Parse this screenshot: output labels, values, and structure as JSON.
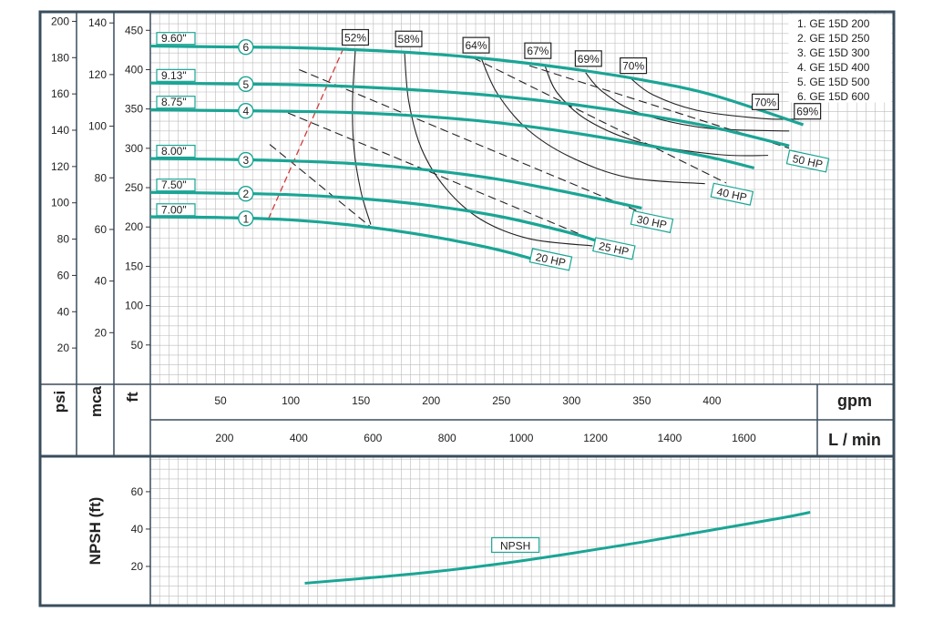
{
  "colors": {
    "curve": "#1aa595",
    "frame": "#3a4d5c",
    "grid": "#bcbcbc",
    "gridMajor": "#9a9a9a",
    "eff": "#222222",
    "hp": "#222222",
    "npshLimit": "#d43a3a"
  },
  "axes": {
    "flow": {
      "label": "gpm",
      "range": [
        0,
        475
      ],
      "ticks": [
        50,
        100,
        150,
        200,
        250,
        300,
        350,
        400
      ]
    },
    "flowMetric": {
      "label": "L / min",
      "ticks": [
        200,
        400,
        600,
        800,
        1000,
        1200,
        1400,
        1600
      ]
    },
    "head": {
      "label": "ft",
      "range": [
        0,
        470
      ],
      "ticks": [
        50,
        100,
        150,
        200,
        250,
        300,
        350,
        400,
        450
      ]
    },
    "mca": {
      "label": "mca",
      "ticks": [
        20,
        40,
        60,
        80,
        100,
        120,
        140
      ]
    },
    "psi": {
      "label": "psi",
      "ticks": [
        20,
        40,
        60,
        80,
        100,
        120,
        140,
        160,
        180,
        200
      ]
    },
    "npsh": {
      "label": "NPSH (ft)",
      "range": [
        0,
        78
      ],
      "ticks": [
        20,
        40,
        60
      ]
    }
  },
  "legend": [
    "1. GE 15D 200",
    "2. GE 15D 250",
    "3. GE 15D 300",
    "4. GE 15D 400",
    "5. GE 15D 500",
    "6. GE 15D 600"
  ],
  "chart_data": [
    {
      "type": "line",
      "series": [
        {
          "name": "1",
          "diameter": "7.00\"",
          "x": [
            0,
            50,
            100,
            150,
            200,
            250,
            290
          ],
          "y": [
            213,
            212,
            209,
            201,
            188,
            170,
            150
          ]
        },
        {
          "name": "2",
          "diameter": "7.50\"",
          "x": [
            0,
            50,
            100,
            150,
            200,
            250,
            300,
            320
          ],
          "y": [
            244,
            243,
            241,
            236,
            227,
            213,
            192,
            181
          ]
        },
        {
          "name": "3",
          "diameter": "8.00\"",
          "x": [
            0,
            50,
            100,
            150,
            200,
            250,
            300,
            350
          ],
          "y": [
            287,
            286,
            284,
            280,
            272,
            260,
            243,
            224
          ]
        },
        {
          "name": "4",
          "diameter": "8.75\"",
          "x": [
            0,
            50,
            100,
            150,
            200,
            250,
            300,
            350,
            400,
            430
          ],
          "y": [
            349,
            348,
            347,
            345,
            340,
            332,
            320,
            305,
            288,
            275
          ]
        },
        {
          "name": "5",
          "diameter": "9.13\"",
          "x": [
            0,
            50,
            100,
            150,
            200,
            250,
            300,
            350,
            400,
            455
          ],
          "y": [
            383,
            382,
            381,
            378,
            373,
            366,
            356,
            343,
            327,
            303
          ]
        },
        {
          "name": "6",
          "diameter": "9.60\"",
          "x": [
            0,
            50,
            100,
            150,
            200,
            250,
            300,
            350,
            400,
            465
          ],
          "y": [
            430,
            429,
            428,
            425,
            420,
            412,
            401,
            387,
            368,
            330
          ]
        }
      ],
      "efficiency": [
        "52%",
        "58%",
        "64%",
        "67%",
        "69%",
        "70%",
        "70%",
        "69%"
      ],
      "power": [
        "20 HP",
        "25 HP",
        "30 HP",
        "40 HP",
        "50 HP"
      ]
    },
    {
      "type": "line",
      "series": [
        {
          "name": "NPSH",
          "x": [
            110,
            150,
            200,
            250,
            300,
            350,
            400,
            450,
            470
          ],
          "y": [
            11,
            13.5,
            17,
            21.5,
            27,
            33,
            39.5,
            46,
            49
          ]
        }
      ]
    }
  ]
}
